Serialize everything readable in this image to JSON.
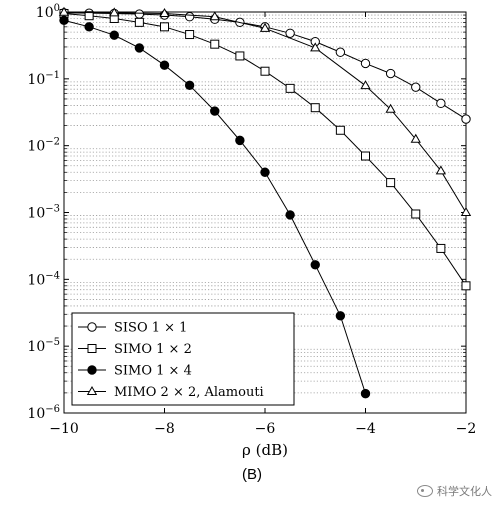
{
  "chart_data": {
    "type": "line",
    "ylog": true,
    "xlim": [
      -10,
      -2
    ],
    "ylim": [
      1e-06,
      1
    ],
    "xlabel": "ρ (dB)",
    "ylabel": "",
    "xticks": [
      {
        "value": -10,
        "label": "−10"
      },
      {
        "value": -8,
        "label": "−8"
      },
      {
        "value": -6,
        "label": "−6"
      },
      {
        "value": -4,
        "label": "−4"
      },
      {
        "value": -2,
        "label": "−2"
      }
    ],
    "yticks": [
      {
        "value": 1,
        "base": "10",
        "exp": "0"
      },
      {
        "value": 0.1,
        "base": "10",
        "exp": "−1"
      },
      {
        "value": 0.01,
        "base": "10",
        "exp": "−2"
      },
      {
        "value": 0.001,
        "base": "10",
        "exp": "−3"
      },
      {
        "value": 0.0001,
        "base": "10",
        "exp": "−4"
      },
      {
        "value": 1e-05,
        "base": "10",
        "exp": "−5"
      },
      {
        "value": 1e-06,
        "base": "10",
        "exp": "−6"
      }
    ],
    "grid": "horizontal-dotted-minor",
    "legend_position": "bottom-left",
    "series": [
      {
        "name": "SISO 1 × 1",
        "marker": "circle-open",
        "x": [
          -10,
          -9.5,
          -9,
          -8.5,
          -8,
          -7.5,
          -7,
          -6.5,
          -6,
          -5.5,
          -5,
          -4.5,
          -4,
          -3.5,
          -3,
          -2.5,
          -2
        ],
        "y": [
          0.97,
          0.96,
          0.95,
          0.93,
          0.9,
          0.85,
          0.78,
          0.7,
          0.6,
          0.48,
          0.36,
          0.25,
          0.17,
          0.12,
          0.075,
          0.043,
          0.025
        ]
      },
      {
        "name": "SIMO 1 × 2",
        "marker": "square-open",
        "x": [
          -10,
          -9.5,
          -9,
          -8.5,
          -8,
          -7.5,
          -7,
          -6.5,
          -6,
          -5.5,
          -5,
          -4.5,
          -4,
          -3.5,
          -3,
          -2.5,
          -2
        ],
        "y": [
          0.95,
          0.88,
          0.8,
          0.7,
          0.6,
          0.46,
          0.33,
          0.22,
          0.13,
          0.072,
          0.037,
          0.017,
          0.007,
          0.0028,
          0.00095,
          0.00029,
          8e-05
        ]
      },
      {
        "name": "SIMO 1 × 4",
        "marker": "circle-filled",
        "x": [
          -10,
          -9.5,
          -9,
          -8.5,
          -8,
          -7.5,
          -7,
          -6.5,
          -6,
          -5.5,
          -5,
          -4.5,
          -4
        ],
        "y": [
          0.75,
          0.6,
          0.45,
          0.29,
          0.16,
          0.08,
          0.033,
          0.012,
          0.004,
          0.00092,
          0.000165,
          2.85e-05,
          1.95e-06
        ]
      },
      {
        "name": "MIMO 2 × 2, Alamouti",
        "marker": "triangle-open",
        "x": [
          -10,
          -9,
          -8,
          -7,
          -6,
          -5,
          -4,
          -3.5,
          -3,
          -2.5,
          -2
        ],
        "y": [
          0.99,
          0.97,
          0.95,
          0.85,
          0.57,
          0.29,
          0.079,
          0.035,
          0.0125,
          0.0042,
          0.001
        ]
      }
    ]
  },
  "panel_label": "(B)",
  "watermark": {
    "icon": "wechat-icon",
    "text": "科学文化人"
  }
}
